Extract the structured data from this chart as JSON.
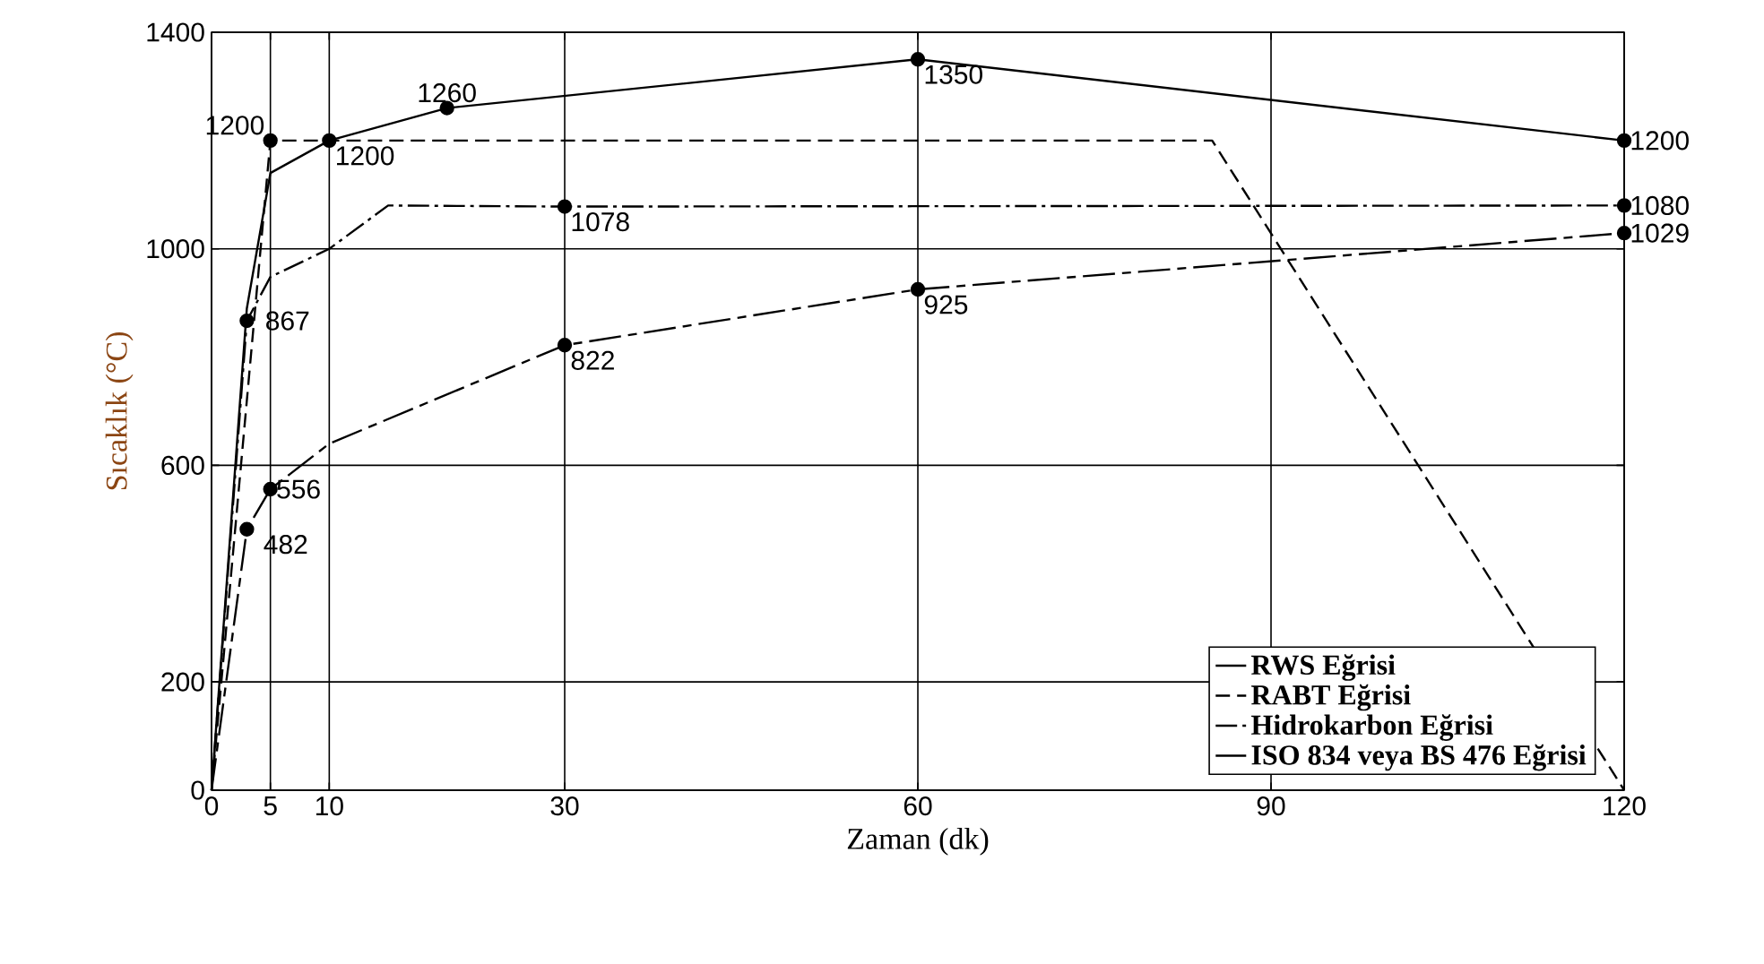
{
  "chart_data": {
    "type": "line",
    "xlabel": "Zaman (dk)",
    "ylabel": "Sıcaklık (°C)",
    "xlim": [
      0,
      120
    ],
    "ylim": [
      0,
      1400
    ],
    "xticks": [
      0,
      5,
      10,
      30,
      60,
      90,
      120
    ],
    "yticks": [
      0,
      200,
      600,
      1000,
      1400
    ],
    "grid": true,
    "legend": "bottom right",
    "series": [
      {
        "name": "RWS Eğrisi",
        "color": "#000000",
        "line_style": "solid",
        "x": [
          0,
          3,
          5,
          10,
          20,
          60,
          120
        ],
        "values": [
          0,
          890,
          1140,
          1200,
          1260,
          1350,
          1200
        ],
        "value_labels": [
          null,
          null,
          null,
          "1200",
          "1260",
          "1350",
          "1200"
        ]
      },
      {
        "name": "RABT Eğrisi",
        "color": "#000000",
        "line_style": "dashed",
        "x": [
          0,
          5,
          85,
          120
        ],
        "values": [
          0,
          1200,
          1200,
          0
        ],
        "value_labels": [
          null,
          "1200",
          null,
          null
        ]
      },
      {
        "name": "Hidrokarbon Eğrisi",
        "color": "#000000",
        "line_style": "dashdot",
        "x": [
          0,
          3,
          5,
          10,
          15,
          30,
          120
        ],
        "values": [
          0,
          867,
          948,
          1000,
          1080,
          1078,
          1080
        ],
        "value_labels": [
          null,
          "867",
          null,
          null,
          null,
          "1078",
          "1080"
        ]
      },
      {
        "name": "ISO 834 veya BS 476 Eğrisi",
        "color": "#000000",
        "line_style": "longdashdot",
        "x": [
          0,
          3,
          5,
          10,
          30,
          60,
          120
        ],
        "values": [
          0,
          482,
          556,
          640,
          822,
          925,
          1029
        ],
        "value_labels": [
          null,
          "482",
          "556",
          null,
          "822",
          "925",
          "1029"
        ]
      }
    ]
  }
}
